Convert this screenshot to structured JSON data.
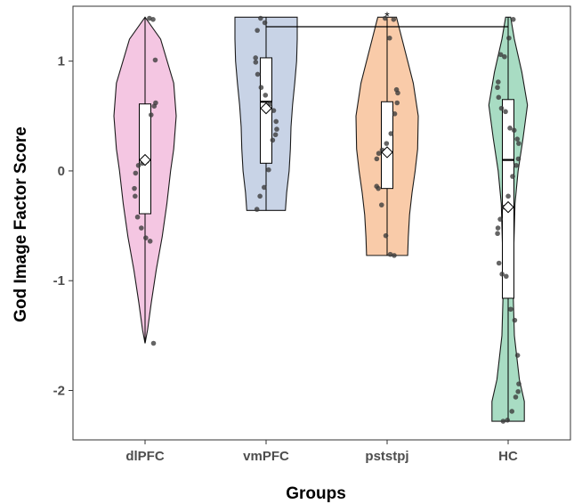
{
  "chart_data": {
    "type": "violin",
    "xlabel": "Groups",
    "ylabel": "God Image Factor Score",
    "categories": [
      "dlPFC",
      "vmPFC",
      "pststpj",
      "HC"
    ],
    "ylim": [
      -2.45,
      1.5
    ],
    "yticks": [
      1,
      0,
      -1,
      -2
    ],
    "ytick_labels": [
      "1",
      "0",
      "-1",
      "-2"
    ],
    "grid": false,
    "significance": {
      "from": "vmPFC",
      "to": "HC",
      "label": "*"
    },
    "groups": [
      {
        "name": "dlPFC",
        "fill": "#f4c6e2",
        "median": 0.1,
        "q1": -0.39,
        "q3": 0.61,
        "mean": 0.1,
        "min": -1.57,
        "max": 1.4,
        "density": [
          [
            1.4,
            0.0
          ],
          [
            1.2,
            0.5
          ],
          [
            0.8,
            0.92
          ],
          [
            0.5,
            1.0
          ],
          [
            0.2,
            0.92
          ],
          [
            0.0,
            0.82
          ],
          [
            -0.3,
            0.7
          ],
          [
            -0.6,
            0.55
          ],
          [
            -0.9,
            0.36
          ],
          [
            -1.2,
            0.2
          ],
          [
            -1.45,
            0.08
          ],
          [
            -1.57,
            0.0
          ]
        ],
        "points": [
          1.39,
          1.38,
          1.01,
          0.62,
          0.59,
          0.51,
          0.09,
          0.07,
          0.05,
          -0.02,
          -0.16,
          -0.23,
          -0.42,
          -0.52,
          -0.61,
          -0.64,
          -1.57
        ]
      },
      {
        "name": "vmPFC",
        "fill": "#c8d3e6",
        "median": 0.63,
        "q1": 0.07,
        "q3": 1.03,
        "mean": 0.57,
        "min": -0.36,
        "max": 1.4,
        "density": [
          [
            1.4,
            1.0
          ],
          [
            1.2,
            1.0
          ],
          [
            1.0,
            0.98
          ],
          [
            0.8,
            0.92
          ],
          [
            0.6,
            0.85
          ],
          [
            0.4,
            0.8
          ],
          [
            0.2,
            0.78
          ],
          [
            0.0,
            0.74
          ],
          [
            -0.2,
            0.66
          ],
          [
            -0.36,
            0.62
          ]
        ],
        "points": [
          1.35,
          1.39,
          1.28,
          1.03,
          0.99,
          0.88,
          0.76,
          0.69,
          0.61,
          0.55,
          0.45,
          0.38,
          0.33,
          0.28,
          0.01,
          -0.15,
          -0.23,
          -0.35
        ]
      },
      {
        "name": "pststpj",
        "fill": "#f9cba9",
        "median": 0.17,
        "q1": -0.16,
        "q3": 0.63,
        "mean": 0.17,
        "min": -0.77,
        "max": 1.4,
        "density": [
          [
            1.4,
            0.3
          ],
          [
            1.2,
            0.48
          ],
          [
            1.0,
            0.66
          ],
          [
            0.8,
            0.84
          ],
          [
            0.5,
            1.0
          ],
          [
            0.2,
            0.98
          ],
          [
            0.0,
            0.9
          ],
          [
            -0.2,
            0.8
          ],
          [
            -0.4,
            0.72
          ],
          [
            -0.6,
            0.68
          ],
          [
            -0.77,
            0.66
          ]
        ],
        "points": [
          1.39,
          1.21,
          1.38,
          0.74,
          0.71,
          0.62,
          0.52,
          0.34,
          0.25,
          0.19,
          0.16,
          0.11,
          -0.14,
          -0.16,
          -0.31,
          -0.59,
          -0.76,
          -0.77
        ]
      },
      {
        "name": "HC",
        "fill": "#a8dcc3",
        "median": 0.1,
        "q1": -1.16,
        "q3": 0.65,
        "mean": -0.33,
        "min": -2.28,
        "max": 1.4,
        "density": [
          [
            1.4,
            0.08
          ],
          [
            1.2,
            0.2
          ],
          [
            0.9,
            0.44
          ],
          [
            0.6,
            0.62
          ],
          [
            0.3,
            0.48
          ],
          [
            0.0,
            0.32
          ],
          [
            -0.3,
            0.22
          ],
          [
            -0.7,
            0.18
          ],
          [
            -1.1,
            0.16
          ],
          [
            -1.5,
            0.2
          ],
          [
            -1.9,
            0.36
          ],
          [
            -2.1,
            0.52
          ],
          [
            -2.28,
            0.52
          ]
        ],
        "points": [
          1.38,
          1.21,
          1.04,
          1.06,
          0.81,
          0.76,
          0.67,
          0.57,
          0.54,
          0.39,
          0.37,
          0.29,
          0.25,
          0.11,
          0.05,
          -0.05,
          -0.23,
          -0.33,
          -0.44,
          -0.52,
          -0.57,
          -0.84,
          -0.94,
          -0.96,
          -1.26,
          -1.36,
          -1.68,
          -1.94,
          -2.01,
          -2.06,
          -2.19,
          -2.27,
          -2.28
        ]
      }
    ]
  }
}
